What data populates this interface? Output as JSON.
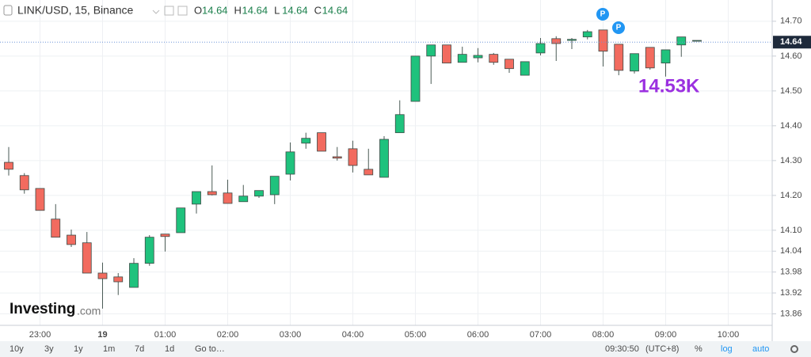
{
  "chart_data": {
    "type": "candlestick",
    "title": "LINK/USD, 15, Binance",
    "ohlc_legend": [
      {
        "label": "O",
        "value": 14.64
      },
      {
        "label": "H",
        "value": 14.64
      },
      {
        "label": "L",
        "value": 14.64
      },
      {
        "label": "C",
        "value": 14.64
      }
    ],
    "categories": [
      null,
      null,
      "23:00",
      null,
      null,
      null,
      "19",
      null,
      null,
      null,
      "01:00",
      null,
      null,
      null,
      "02:00",
      null,
      null,
      null,
      "03:00",
      null,
      null,
      null,
      "04:00",
      null,
      null,
      null,
      "05:00",
      null,
      null,
      null,
      "06:00",
      null,
      null,
      null,
      "07:00",
      null,
      null,
      null,
      "08:00",
      null,
      null,
      null,
      "09:00",
      null,
      null,
      null,
      "10:00"
    ],
    "open": [
      14.295,
      14.257,
      14.22,
      14.132,
      14.086,
      14.064,
      13.977,
      13.966,
      13.936,
      14.005,
      14.089,
      14.093,
      14.175,
      14.211,
      14.207,
      14.182,
      14.198,
      14.202,
      14.261,
      14.35,
      14.38,
      14.311,
      14.334,
      14.275,
      14.252,
      14.38,
      14.47,
      14.6,
      14.632,
      14.582,
      14.595,
      14.605,
      14.591,
      14.545,
      14.609,
      14.65,
      14.645,
      14.655,
      14.675,
      14.634,
      14.557,
      14.625,
      14.58,
      14.632,
      14.645,
      null,
      null
    ],
    "high": [
      14.339,
      14.264,
      14.22,
      14.175,
      14.102,
      14.095,
      14.007,
      13.977,
      14.02,
      14.086,
      14.089,
      14.164,
      14.211,
      14.286,
      14.245,
      14.23,
      14.214,
      14.255,
      14.352,
      14.38,
      14.38,
      14.339,
      14.357,
      14.334,
      14.37,
      14.473,
      14.6,
      14.632,
      14.632,
      14.627,
      14.623,
      14.609,
      14.591,
      14.584,
      14.652,
      14.657,
      14.652,
      14.675,
      14.675,
      14.634,
      14.607,
      14.625,
      14.618,
      14.655,
      14.645,
      null,
      null
    ],
    "low": [
      14.257,
      14.205,
      14.157,
      14.08,
      14.052,
      13.977,
      13.875,
      13.914,
      13.936,
      13.998,
      14.039,
      14.093,
      14.148,
      14.2,
      14.177,
      14.182,
      14.193,
      14.175,
      14.243,
      14.334,
      14.327,
      14.3,
      14.266,
      14.259,
      14.252,
      14.38,
      14.47,
      14.52,
      14.58,
      14.582,
      14.582,
      14.575,
      14.552,
      14.545,
      14.602,
      14.586,
      14.62,
      14.648,
      14.57,
      14.545,
      14.55,
      14.561,
      14.541,
      14.598,
      14.645,
      null,
      null
    ],
    "close": [
      14.275,
      14.216,
      14.157,
      14.08,
      14.059,
      13.977,
      13.961,
      13.952,
      14.005,
      14.08,
      14.082,
      14.164,
      14.211,
      14.202,
      14.177,
      14.198,
      14.214,
      14.255,
      14.325,
      14.364,
      14.327,
      14.307,
      14.286,
      14.259,
      14.361,
      14.432,
      14.6,
      14.632,
      14.58,
      14.605,
      14.602,
      14.582,
      14.564,
      14.584,
      14.636,
      14.636,
      14.648,
      14.67,
      14.614,
      14.559,
      14.607,
      14.566,
      14.618,
      14.655,
      14.645,
      null,
      null
    ],
    "up_color": "#1fc27d",
    "down_color": "#f26b5f",
    "ylim": [
      13.827,
      14.761
    ],
    "yticks": [
      {
        "value": 14.7,
        "label": "14.70"
      },
      {
        "value": 14.6,
        "label": "14.60"
      },
      {
        "value": 14.5,
        "label": "14.50"
      },
      {
        "value": 14.4,
        "label": "14.40"
      },
      {
        "value": 14.3,
        "label": "14.30"
      },
      {
        "value": 14.2,
        "label": "14.20"
      },
      {
        "value": 14.1,
        "label": "14.10"
      },
      14.04,
      13.98,
      13.92,
      13.86
    ],
    "last_price": 14.64,
    "annotation": "14.53K",
    "events": [
      "P",
      "P"
    ],
    "grid": true,
    "log_scale": false
  },
  "logo": {
    "brand": "Investing",
    "suffix": ".com"
  },
  "toolbar": {
    "ranges": [
      "10y",
      "3y",
      "1y",
      "1m",
      "7d",
      "1d"
    ],
    "goto": "Go to…",
    "time": "09:30:50",
    "timezone": "(UTC+8)",
    "percent": "%",
    "log": "log",
    "auto": "auto"
  }
}
